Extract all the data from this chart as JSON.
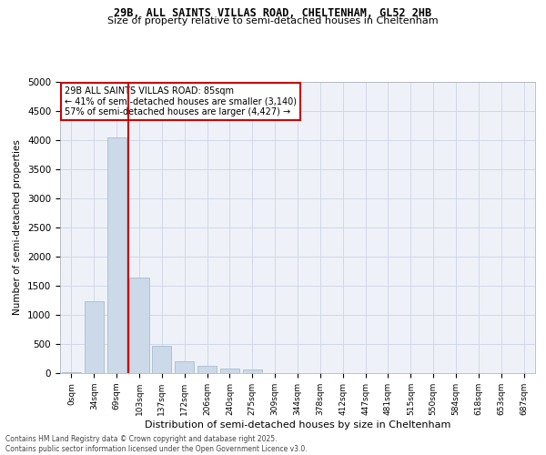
{
  "title1": "29B, ALL SAINTS VILLAS ROAD, CHELTENHAM, GL52 2HB",
  "title2": "Size of property relative to semi-detached houses in Cheltenham",
  "xlabel": "Distribution of semi-detached houses by size in Cheltenham",
  "ylabel": "Number of semi-detached properties",
  "bar_color": "#ccd9e8",
  "bar_edge_color": "#aabccc",
  "vline_color": "#cc0000",
  "vline_x": 2.5,
  "annotation_text": "29B ALL SAINTS VILLAS ROAD: 85sqm\n← 41% of semi-detached houses are smaller (3,140)\n57% of semi-detached houses are larger (4,427) →",
  "annotation_box_color": "#ffffff",
  "annotation_box_edge": "#cc0000",
  "categories": [
    "0sqm",
    "34sqm",
    "69sqm",
    "103sqm",
    "137sqm",
    "172sqm",
    "206sqm",
    "240sqm",
    "275sqm",
    "309sqm",
    "344sqm",
    "378sqm",
    "412sqm",
    "447sqm",
    "481sqm",
    "515sqm",
    "550sqm",
    "584sqm",
    "618sqm",
    "653sqm",
    "687sqm"
  ],
  "values": [
    15,
    1230,
    4050,
    1640,
    470,
    210,
    130,
    75,
    55,
    0,
    0,
    0,
    0,
    0,
    0,
    0,
    0,
    0,
    0,
    0,
    0
  ],
  "ylim": [
    0,
    5000
  ],
  "yticks": [
    0,
    500,
    1000,
    1500,
    2000,
    2500,
    3000,
    3500,
    4000,
    4500,
    5000
  ],
  "grid_color": "#d0d8ea",
  "background_color": "#eef2f8",
  "footer1": "Contains HM Land Registry data © Crown copyright and database right 2025.",
  "footer2": "Contains public sector information licensed under the Open Government Licence v3.0."
}
